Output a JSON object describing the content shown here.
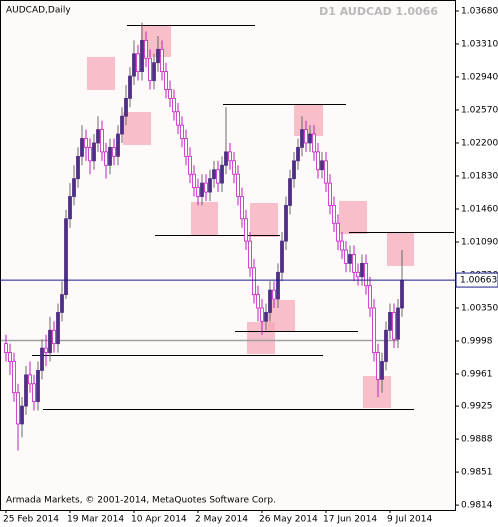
{
  "chart_data": {
    "type": "candlestick",
    "symbol_label": "AUDCAD,Daily",
    "title": "D1 AUDCAD 1.0066",
    "footer": "Armada Markets, © 2001-2014, MetaQuotes Software Corp.",
    "current_price": 1.00663,
    "up_color": "#4f2f86",
    "down_color": "#c21fc2",
    "wick_color": "#6a6a6a",
    "grid": false,
    "categories": [
      "25 Feb 2014",
      null,
      null,
      null,
      null,
      null,
      null,
      null,
      null,
      null,
      null,
      null,
      null,
      null,
      null,
      null,
      "19 Mar 2014",
      null,
      null,
      null,
      null,
      null,
      null,
      null,
      null,
      null,
      null,
      null,
      null,
      null,
      null,
      null,
      "10 Apr 2014",
      null,
      null,
      null,
      null,
      null,
      null,
      null,
      null,
      null,
      null,
      null,
      null,
      null,
      null,
      null,
      "2 May 2014",
      null,
      null,
      null,
      null,
      null,
      null,
      null,
      null,
      null,
      null,
      null,
      null,
      null,
      null,
      null,
      "26 May 2014",
      null,
      null,
      null,
      null,
      null,
      null,
      null,
      null,
      null,
      null,
      null,
      null,
      null,
      null,
      null,
      "17 Jun 2014",
      null,
      null,
      null,
      null,
      null,
      null,
      null,
      null,
      null,
      null,
      null,
      null,
      null,
      null,
      null,
      "9 Jul 2014",
      null,
      null,
      null
    ],
    "open": [
      0.9995,
      0.9985,
      0.9975,
      0.994,
      0.9905,
      0.9925,
      0.996,
      0.995,
      0.993,
      0.9965,
      0.999,
      0.9985,
      1.001,
      0.9995,
      1.003,
      1.005,
      1.0135,
      1.016,
      1.018,
      1.0205,
      1.0225,
      1.0215,
      1.02,
      1.022,
      1.0235,
      1.021,
      1.0195,
      1.0215,
      1.0205,
      1.023,
      1.025,
      1.027,
      1.0295,
      1.032,
      1.03,
      1.0335,
      1.0315,
      1.029,
      1.031,
      1.0325,
      1.03,
      1.028,
      1.027,
      1.0255,
      1.024,
      1.0225,
      1.0205,
      1.0185,
      1.017,
      1.016,
      1.0175,
      1.0165,
      1.018,
      1.019,
      1.0175,
      1.0195,
      1.021,
      1.02,
      1.0185,
      1.016,
      1.0135,
      1.011,
      1.008,
      1.005,
      1.0035,
      1.002,
      1.003,
      1.0055,
      1.0045,
      1.0075,
      1.011,
      1.015,
      1.018,
      1.02,
      1.0215,
      1.0235,
      1.022,
      1.023,
      1.021,
      1.019,
      1.02,
      1.0175,
      1.015,
      1.013,
      1.011,
      1.01,
      1.0085,
      1.0095,
      1.0075,
      1.007,
      1.0085,
      1.006,
      1.0035,
      0.9985,
      0.9955,
      0.9975,
      1.001,
      1.003,
      1.0,
      1.0035
    ],
    "high": [
      1.0005,
      0.9995,
      0.9985,
      0.995,
      0.9935,
      0.997,
      0.9975,
      0.996,
      0.9975,
      1.0,
      1.0005,
      1.0025,
      1.002,
      1.004,
      1.0065,
      1.0145,
      1.0175,
      1.0195,
      1.0215,
      1.024,
      1.0235,
      1.0225,
      1.023,
      1.025,
      1.0245,
      1.022,
      1.0225,
      1.0225,
      1.024,
      1.026,
      1.0285,
      1.0305,
      1.0335,
      1.033,
      1.0355,
      1.0345,
      1.0325,
      1.032,
      1.034,
      1.0335,
      1.031,
      1.029,
      1.028,
      1.0265,
      1.025,
      1.0235,
      1.0215,
      1.0195,
      1.018,
      1.0185,
      1.0185,
      1.019,
      1.02,
      1.02,
      1.0205,
      1.026,
      1.022,
      1.021,
      1.0195,
      1.017,
      1.0145,
      1.012,
      1.009,
      1.006,
      1.0045,
      1.004,
      1.0065,
      1.0065,
      1.0085,
      1.012,
      1.016,
      1.019,
      1.021,
      1.0225,
      1.025,
      1.0245,
      1.024,
      1.024,
      1.022,
      1.021,
      1.021,
      1.0185,
      1.016,
      1.014,
      1.012,
      1.011,
      1.0105,
      1.0105,
      1.0085,
      1.0095,
      1.0095,
      1.007,
      1.0045,
      0.9995,
      0.9985,
      1.002,
      1.004,
      1.004,
      1.0045,
      1.01
    ],
    "low": [
      0.9975,
      0.996,
      0.993,
      0.9875,
      0.989,
      0.9915,
      0.994,
      0.992,
      0.992,
      0.9955,
      0.997,
      0.9975,
      0.9985,
      0.9985,
      1.002,
      1.0045,
      1.0125,
      1.015,
      1.017,
      1.0195,
      1.02,
      1.0185,
      1.019,
      1.021,
      1.02,
      1.018,
      1.0185,
      1.0195,
      1.0195,
      1.022,
      1.024,
      1.026,
      1.0285,
      1.029,
      1.029,
      1.0305,
      1.028,
      1.028,
      1.03,
      1.029,
      1.027,
      1.026,
      1.0245,
      1.023,
      1.0215,
      1.0195,
      1.0175,
      1.016,
      1.015,
      1.015,
      1.0155,
      1.0155,
      1.017,
      1.0165,
      1.0165,
      1.0185,
      1.019,
      1.0175,
      1.015,
      1.0125,
      1.01,
      1.007,
      1.004,
      1.002,
      1.0005,
      1.001,
      1.002,
      1.0035,
      1.0035,
      1.0065,
      1.01,
      1.014,
      1.017,
      1.019,
      1.0205,
      1.021,
      1.021,
      1.02,
      1.018,
      1.018,
      1.0165,
      1.014,
      1.012,
      1.01,
      1.009,
      1.0075,
      1.0075,
      1.0065,
      1.006,
      1.006,
      1.005,
      1.0025,
      0.9975,
      0.9935,
      0.994,
      0.9965,
      1.0,
      0.999,
      0.999,
      1.0025
    ],
    "close": [
      0.9985,
      0.9975,
      0.994,
      0.9905,
      0.9925,
      0.996,
      0.995,
      0.993,
      0.9965,
      0.999,
      0.9985,
      1.001,
      0.9995,
      1.003,
      1.005,
      1.0135,
      1.016,
      1.018,
      1.0205,
      1.0225,
      1.0215,
      1.02,
      1.022,
      1.0235,
      1.021,
      1.0195,
      1.0215,
      1.0205,
      1.023,
      1.025,
      1.027,
      1.0295,
      1.032,
      1.03,
      1.0335,
      1.0315,
      1.029,
      1.031,
      1.0325,
      1.03,
      1.028,
      1.027,
      1.0255,
      1.024,
      1.0225,
      1.0205,
      1.0185,
      1.017,
      1.016,
      1.0175,
      1.0165,
      1.018,
      1.019,
      1.0175,
      1.0195,
      1.021,
      1.02,
      1.0185,
      1.016,
      1.0135,
      1.011,
      1.008,
      1.005,
      1.0035,
      1.002,
      1.003,
      1.0055,
      1.0045,
      1.0075,
      1.011,
      1.015,
      1.018,
      1.02,
      1.0215,
      1.0235,
      1.022,
      1.023,
      1.021,
      1.019,
      1.02,
      1.0175,
      1.015,
      1.013,
      1.011,
      1.01,
      1.0085,
      1.0095,
      1.0075,
      1.007,
      1.0085,
      1.006,
      1.0035,
      0.9985,
      0.9955,
      0.9975,
      1.001,
      1.003,
      1.0,
      1.0035,
      1.0066
    ],
    "ylim": [
      0.98085,
      1.03803
    ],
    "yticks": [
      {
        "value": 1.0368,
        "label": "1.03680"
      },
      {
        "value": 1.0331,
        "label": "1.03310"
      },
      {
        "value": 1.0294,
        "label": "1.02940"
      },
      {
        "value": 1.0257,
        "label": "1.02570"
      },
      {
        "value": 1.022,
        "label": "1.02200"
      },
      {
        "value": 1.0183,
        "label": "1.01830"
      },
      {
        "value": 1.0146,
        "label": "1.01460"
      },
      {
        "value": 1.0109,
        "label": "1.01090"
      },
      {
        "value": 1.0072,
        "label": "1.00720"
      },
      {
        "value": 1.0035,
        "label": "1.00350"
      },
      0.9998,
      0.9961,
      0.9925,
      0.9888,
      0.9851,
      0.9814
    ]
  }
}
